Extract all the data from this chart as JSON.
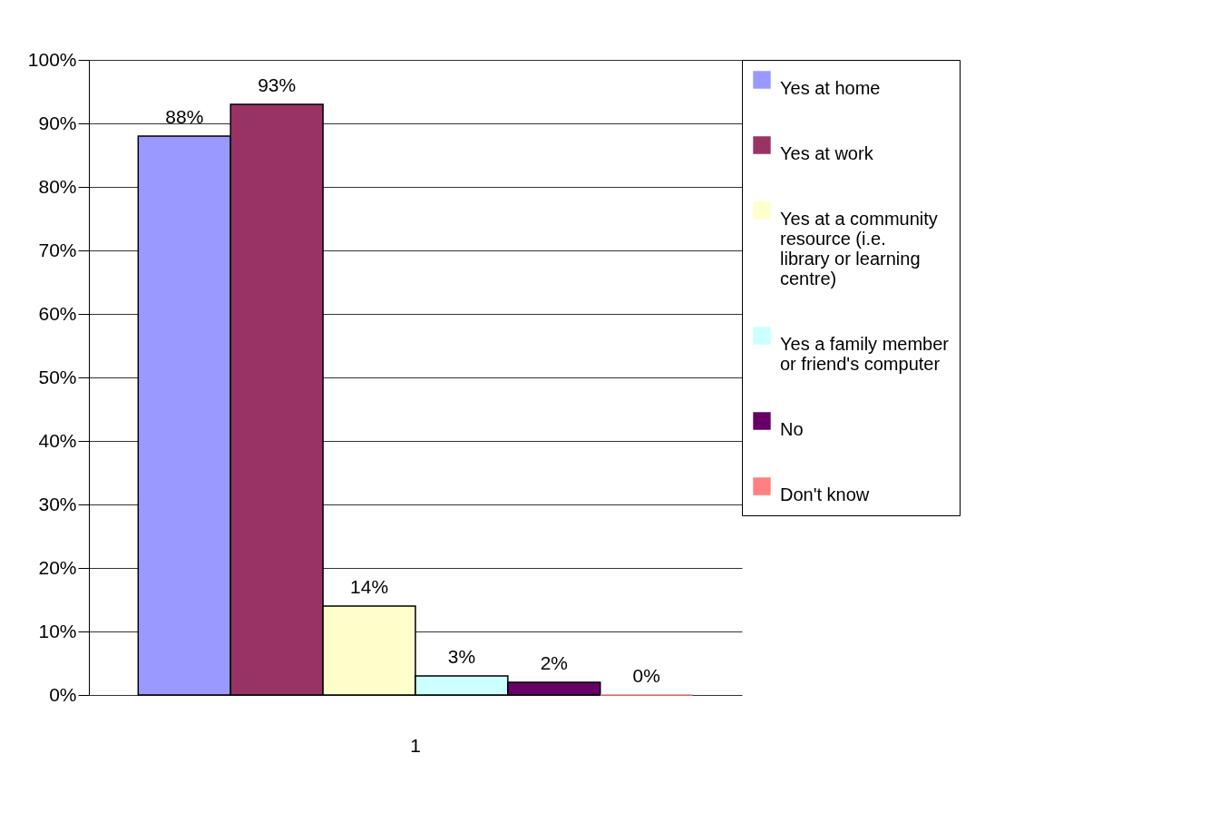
{
  "chart_data": {
    "type": "bar",
    "categories": [
      "1"
    ],
    "series": [
      {
        "name": "Yes at home",
        "color": "#9999ff",
        "values": [
          88
        ],
        "value_labels": [
          "88%"
        ]
      },
      {
        "name": "Yes at work",
        "color": "#993366",
        "values": [
          93
        ],
        "value_labels": [
          "93%"
        ]
      },
      {
        "name": "Yes at a community resource (i.e. library or learning centre)",
        "color": "#ffffcc",
        "values": [
          14
        ],
        "value_labels": [
          "14%"
        ]
      },
      {
        "name": "Yes a family member or friend's computer",
        "color": "#ccffff",
        "values": [
          3
        ],
        "value_labels": [
          "3%"
        ]
      },
      {
        "name": "No",
        "color": "#660066",
        "values": [
          2
        ],
        "value_labels": [
          "2%"
        ]
      },
      {
        "name": "Don't know",
        "color": "#ff8080",
        "values": [
          0
        ],
        "value_labels": [
          "0%"
        ]
      }
    ],
    "ylim": [
      0,
      100
    ],
    "yticks": [
      {
        "value": 0,
        "label": "0%"
      },
      {
        "value": 10,
        "label": "10%"
      },
      {
        "value": 20,
        "label": "20%"
      },
      {
        "value": 30,
        "label": "30%"
      },
      {
        "value": 40,
        "label": "40%"
      },
      {
        "value": 50,
        "label": "50%"
      },
      {
        "value": 60,
        "label": "60%"
      },
      {
        "value": 70,
        "label": "70%"
      },
      {
        "value": 80,
        "label": "80%"
      },
      {
        "value": 90,
        "label": "90%"
      },
      {
        "value": 100,
        "label": "100%"
      }
    ],
    "grid": "y",
    "legend": "right"
  }
}
